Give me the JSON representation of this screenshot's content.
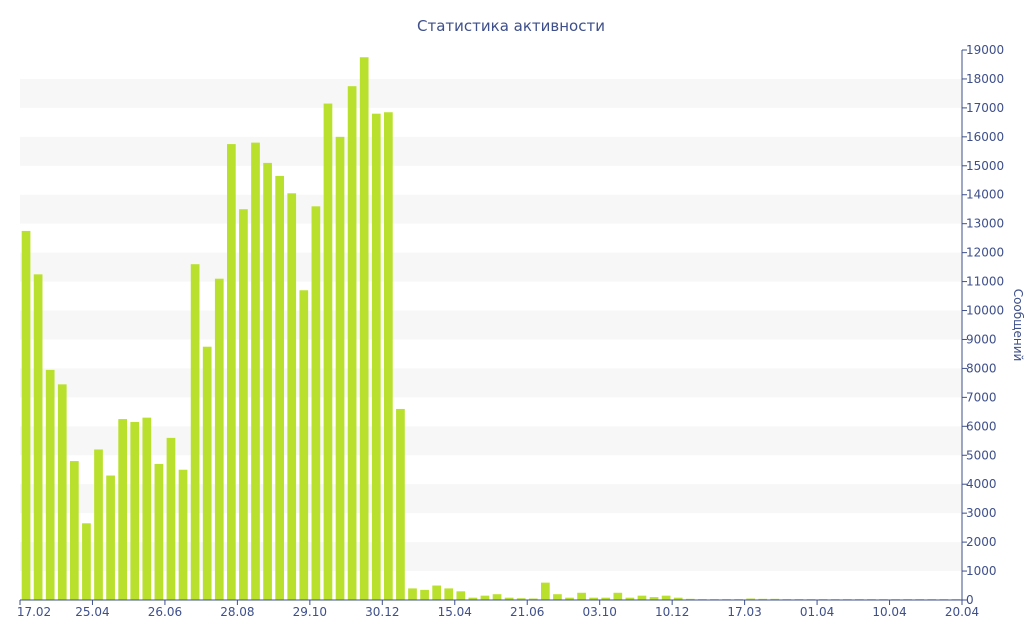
{
  "chart_data": {
    "type": "bar",
    "title": "Статистика активности",
    "ylabel": "Сообщений",
    "xlabel": "",
    "ylim": [
      0,
      19000
    ],
    "y_ticks": [
      0,
      1000,
      2000,
      3000,
      4000,
      5000,
      6000,
      7000,
      8000,
      9000,
      10000,
      11000,
      12000,
      13000,
      14000,
      15000,
      16000,
      17000,
      18000,
      19000
    ],
    "x_tick_labels": [
      "17.02",
      "25.04",
      "26.06",
      "28.08",
      "29.10",
      "30.12",
      "15.04",
      "21.06",
      "03.10",
      "10.12",
      "17.03",
      "01.04",
      "10.04",
      "20.04"
    ],
    "values": [
      12750,
      11250,
      7950,
      7450,
      4800,
      2650,
      5200,
      4300,
      6250,
      6150,
      6300,
      4700,
      5600,
      4500,
      11600,
      8750,
      11100,
      15750,
      13500,
      15800,
      15100,
      14650,
      14050,
      10700,
      13600,
      17150,
      16000,
      17750,
      18750,
      16800,
      16850,
      6600,
      400,
      350,
      500,
      400,
      300,
      80,
      150,
      200,
      80,
      60,
      50,
      600,
      200,
      80,
      250,
      80,
      80,
      250,
      80,
      150,
      100,
      150,
      80,
      40,
      30,
      30,
      30,
      30,
      50,
      40,
      40,
      30,
      30,
      30,
      30,
      30,
      30,
      30,
      30,
      30,
      30,
      30,
      30,
      30,
      30,
      30
    ],
    "grid": "horizontal bands",
    "y_axis_position": "right",
    "colors": {
      "bar": "#b9e02c",
      "band": "#f7f7f7",
      "text": "#3e4f8a",
      "axis": "#3e4f8a"
    }
  }
}
